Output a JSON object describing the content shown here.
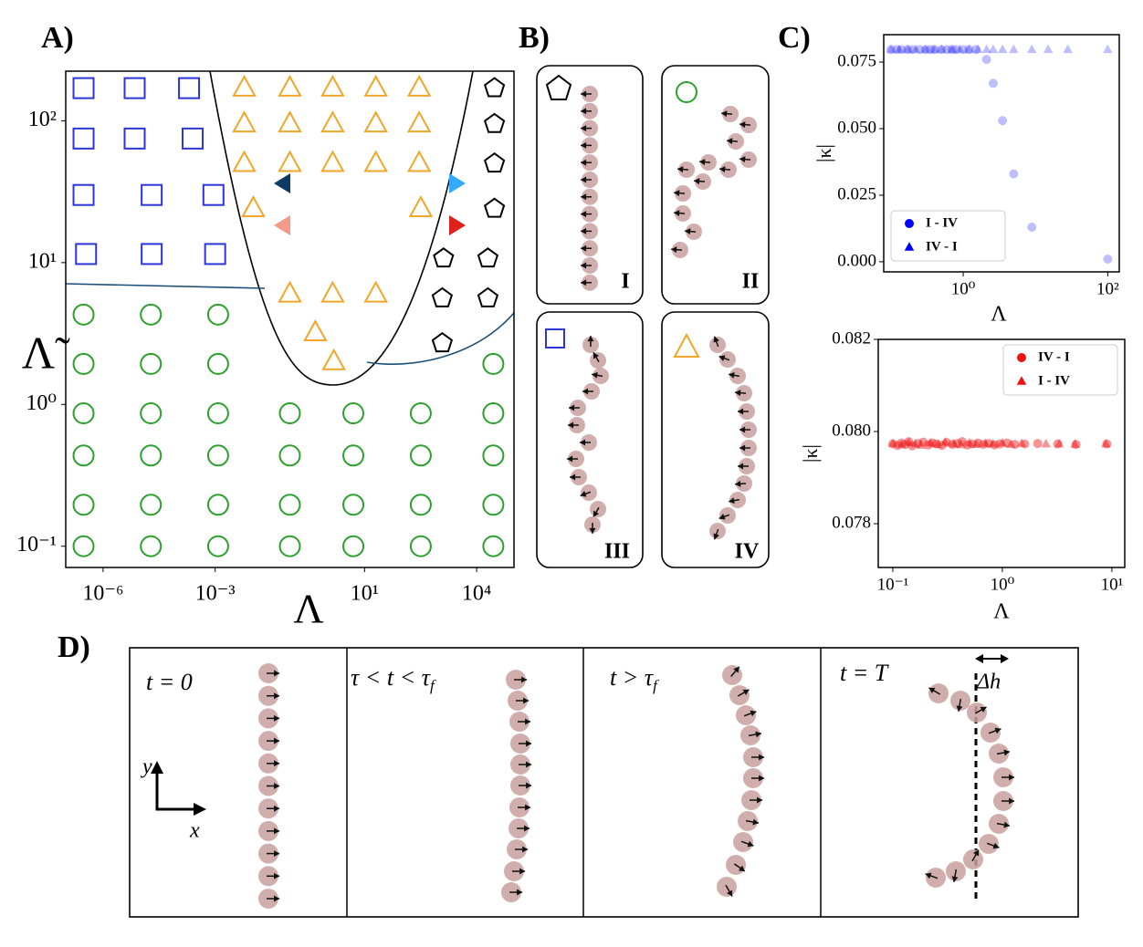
{
  "chart_data": [
    {
      "type": "scatter",
      "label": "A)",
      "xlabel": "Λ",
      "ylabel": "Λ̃",
      "xscale": "log",
      "yscale": "log",
      "xlim": [
        1e-07,
        100000
      ],
      "ylim": [
        0.0708,
        224
      ],
      "xticks": [
        {
          "value": 1e-06,
          "label": "10⁻⁶"
        },
        {
          "value": 0.001,
          "label": "10⁻³"
        },
        {
          "value": 10,
          "label": "10¹"
        },
        {
          "value": 10000,
          "label": "10⁴"
        }
      ],
      "yticks": [
        {
          "value": 0.1,
          "label": "10⁻¹"
        },
        {
          "value": 1,
          "label": "10⁰"
        },
        {
          "value": 10,
          "label": "10¹"
        },
        {
          "value": 100,
          "label": "10²"
        }
      ],
      "filled": false,
      "series": [
        {
          "marker": "square",
          "color": "#2b35d8",
          "x": [
            3e-07,
            7e-06,
            0.0002,
            3e-07,
            7e-06,
            0.00025,
            3e-07,
            2e-05,
            0.0009,
            3.5e-07,
            2e-05,
            0.001
          ],
          "y": [
            170,
            170,
            170,
            75,
            75,
            75,
            30,
            30,
            30,
            11.5,
            11.5,
            11.5
          ]
        },
        {
          "marker": "triangle",
          "color": "#f2a629",
          "x": [
            0.006,
            0.1,
            1.4,
            20,
            290,
            0.006,
            0.1,
            1.4,
            20,
            290,
            0.006,
            0.1,
            1.4,
            20,
            290,
            0.0105,
            320,
            0.1,
            1.4,
            20,
            0.48,
            1.5
          ],
          "y": [
            170,
            170,
            170,
            170,
            170,
            95,
            95,
            95,
            95,
            95,
            50,
            50,
            50,
            50,
            50,
            24,
            24,
            6,
            6,
            6,
            3.2,
            2
          ]
        },
        {
          "marker": "pentagon",
          "color": "#000000",
          "x": [
            30000,
            30000,
            30000,
            30000,
            1300,
            20000,
            1200,
            20000,
            1200
          ],
          "y": [
            170,
            95,
            50,
            24,
            10.7,
            10.7,
            5.6,
            5.6,
            2.7
          ]
        },
        {
          "marker": "circle",
          "color": "#2ca02c",
          "x": [
            3e-07,
            1.9e-05,
            0.0012,
            3e-07,
            1.9e-05,
            0.0012,
            28000,
            3e-07,
            1.9e-05,
            0.0012,
            0.1,
            5,
            320,
            28000,
            3e-07,
            1.9e-05,
            0.0012,
            0.1,
            5,
            320,
            28000,
            3e-07,
            1.9e-05,
            0.0012,
            0.1,
            5,
            320,
            28000,
            3e-07,
            1.9e-05,
            0.0012,
            0.1,
            5,
            320,
            28000
          ],
          "y": [
            4.3,
            4.3,
            4.3,
            1.93,
            1.93,
            1.93,
            1.93,
            0.865,
            0.865,
            0.865,
            0.865,
            0.865,
            0.865,
            0.865,
            0.436,
            0.436,
            0.436,
            0.436,
            0.436,
            0.436,
            0.436,
            0.196,
            0.196,
            0.196,
            0.196,
            0.196,
            0.196,
            0.196,
            0.1,
            0.1,
            0.1,
            0.1,
            0.1,
            0.1,
            0.1
          ]
        }
      ]
    },
    {
      "type": "scatter",
      "label": "C)",
      "xlabel": "Λ",
      "ylabel": "|κ|",
      "xscale": "log",
      "xlim": [
        0.0794,
        144.5
      ],
      "ylim": [
        -0.0038,
        0.0853
      ],
      "xticks": [
        {
          "value": 1,
          "label": "10⁰"
        },
        {
          "value": 100,
          "label": "10²"
        }
      ],
      "yticks": [
        {
          "value": 0,
          "label": "0.000"
        },
        {
          "value": 0.025,
          "label": "0.025"
        },
        {
          "value": 0.05,
          "label": "0.050"
        },
        {
          "value": 0.075,
          "label": "0.075"
        }
      ],
      "filled": true,
      "alpha": 0.25,
      "legend": "lower left",
      "series": [
        {
          "name": "I - IV",
          "marker": "circle",
          "color": "#0000ff",
          "x": [
            0.1,
            0.12,
            0.14,
            0.17,
            0.2,
            0.25,
            0.3,
            0.35,
            0.4,
            0.5,
            0.6,
            0.7,
            0.8,
            1,
            1.2,
            1.5,
            2.1,
            2.6,
            3.5,
            5,
            8.9,
            100
          ],
          "y": [
            0.0797,
            0.0797,
            0.0797,
            0.0797,
            0.0797,
            0.0797,
            0.0797,
            0.0797,
            0.0797,
            0.0797,
            0.0797,
            0.0797,
            0.0797,
            0.0797,
            0.0797,
            0.0797,
            0.076,
            0.067,
            0.053,
            0.033,
            0.013,
            0.001
          ]
        },
        {
          "name": "IV - I",
          "marker": "triangle",
          "color": "#0000ff",
          "x": [
            0.1,
            0.13,
            0.17,
            0.22,
            0.3,
            0.4,
            0.5,
            0.7,
            0.9,
            1.2,
            1.6,
            2.1,
            2.6,
            3.5,
            5,
            8.9,
            15,
            28,
            100
          ],
          "y": [
            0.0797,
            0.0797,
            0.0797,
            0.0797,
            0.0797,
            0.0797,
            0.0797,
            0.0797,
            0.0797,
            0.0797,
            0.0797,
            0.0797,
            0.0797,
            0.0797,
            0.0797,
            0.0797,
            0.0797,
            0.0797,
            0.0797
          ]
        }
      ]
    },
    {
      "type": "scatter",
      "xlabel": "Λ",
      "ylabel": "|κ|",
      "xscale": "log",
      "xlim": [
        0.0736,
        13.1
      ],
      "ylim": [
        0.07705,
        0.082
      ],
      "xticks": [
        {
          "value": 0.1,
          "label": "10⁻¹"
        },
        {
          "value": 1,
          "label": "10⁰"
        },
        {
          "value": 10,
          "label": "10¹"
        }
      ],
      "yticks": [
        {
          "value": 0.078,
          "label": "0.078"
        },
        {
          "value": 0.08,
          "label": "0.080"
        },
        {
          "value": 0.082,
          "label": "0.082"
        }
      ],
      "filled": true,
      "alpha": 0.45,
      "legend": "upper right",
      "series": [
        {
          "name": "IV - I",
          "marker": "circle",
          "color": "#ee1111",
          "x": [
            0.1,
            0.11,
            0.12,
            0.13,
            0.14,
            0.15,
            0.17,
            0.19,
            0.21,
            0.23,
            0.25,
            0.28,
            0.31,
            0.35,
            0.39,
            0.43,
            0.48,
            0.53,
            0.6,
            0.67,
            0.75,
            0.85,
            0.95,
            1.1,
            1.3,
            1.6,
            2.1,
            3.2,
            4.7,
            9
          ],
          "y": [
            0.07973,
            0.0797,
            0.07975,
            0.07972,
            0.07978,
            0.07969,
            0.07974,
            0.07977,
            0.07971,
            0.07975,
            0.07973,
            0.0797,
            0.07976,
            0.07972,
            0.07974,
            0.07978,
            0.07971,
            0.07973,
            0.07975,
            0.07972,
            0.07974,
            0.07971,
            0.07973,
            0.07975,
            0.07972,
            0.07973,
            0.07974,
            0.07973,
            0.07972,
            0.07973
          ]
        },
        {
          "name": "I - IV",
          "marker": "triangle",
          "color": "#ee1111",
          "x": [
            0.1,
            0.12,
            0.14,
            0.16,
            0.18,
            0.22,
            0.26,
            0.3,
            0.36,
            0.42,
            0.5,
            0.58,
            0.7,
            0.82,
            1,
            1.2,
            1.5,
            2.5,
            3.3,
            4.6,
            8.8
          ],
          "y": [
            0.07974,
            0.07971,
            0.07976,
            0.07973,
            0.0797,
            0.07975,
            0.07972,
            0.07977,
            0.07973,
            0.07971,
            0.07975,
            0.07972,
            0.07974,
            0.07973,
            0.07975,
            0.07972,
            0.07974,
            0.07973,
            0.07973,
            0.07972,
            0.07973
          ]
        }
      ]
    }
  ],
  "panel_b": {
    "label": "B)",
    "boxes": [
      {
        "label": "I"
      },
      {
        "label": "II"
      },
      {
        "label": "III"
      },
      {
        "label": "IV"
      }
    ]
  },
  "panel_d": {
    "label": "D)",
    "frames": [
      {
        "text": "t = 0"
      },
      {
        "text": "τ < t < τ",
        "sub": "f"
      },
      {
        "text": "t > τ",
        "sub": "f"
      },
      {
        "text": "t = T"
      }
    ],
    "delta": "Δh",
    "axis_x": "x",
    "axis_y": "y"
  }
}
